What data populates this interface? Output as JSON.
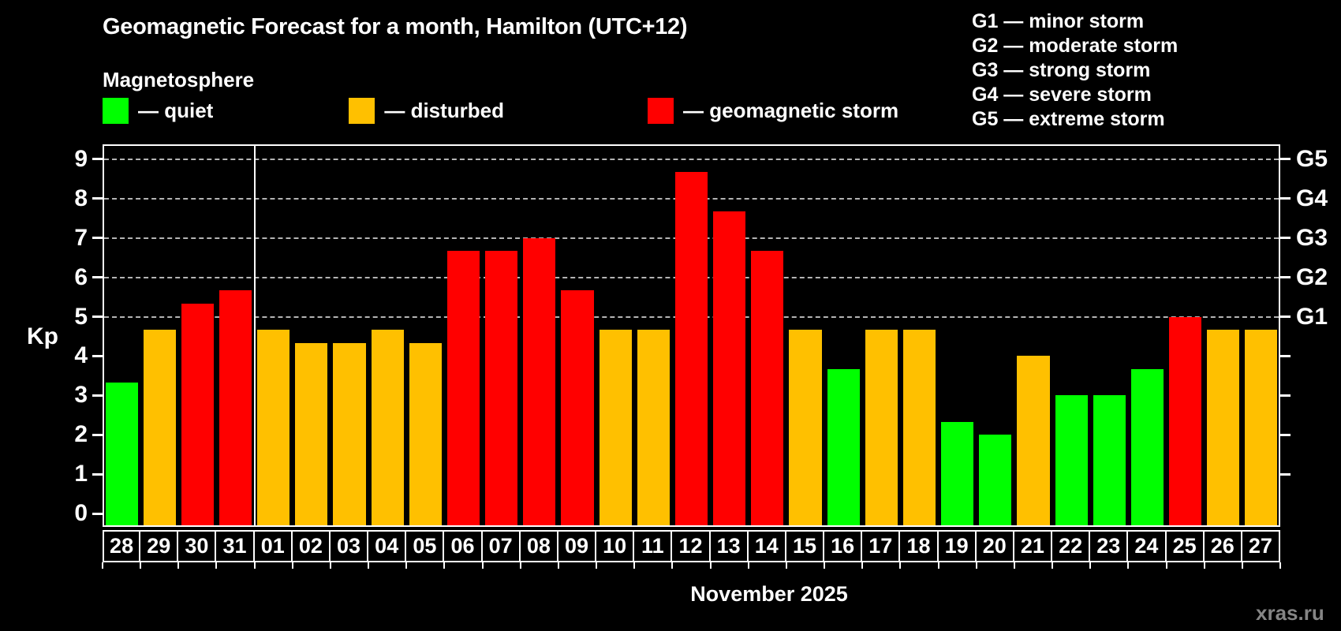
{
  "title": "Geomagnetic Forecast for a month, Hamilton (UTC+12)",
  "subtitle": "Magnetosphere",
  "legend": {
    "items": [
      {
        "label": "— quiet",
        "status": "quiet"
      },
      {
        "label": "— disturbed",
        "status": "disturbed"
      },
      {
        "label": "— geomagnetic storm",
        "status": "storm"
      }
    ]
  },
  "g_legend": {
    "lines": [
      "G1 — minor storm",
      "G2 — moderate storm",
      "G3 — strong storm",
      "G4 — severe storm",
      "G5 — extreme storm"
    ]
  },
  "axis": {
    "kp_label": "Kp",
    "left_tick_labels": [
      "0",
      "1",
      "2",
      "3",
      "4",
      "5",
      "6",
      "7",
      "8",
      "9"
    ],
    "right_labels": [
      {
        "kp": 5,
        "label": "G1"
      },
      {
        "kp": 6,
        "label": "G2"
      },
      {
        "kp": 7,
        "label": "G3"
      },
      {
        "kp": 8,
        "label": "G4"
      },
      {
        "kp": 9,
        "label": "G5"
      }
    ]
  },
  "footer": {
    "month_label": "November 2025",
    "watermark": "xras.ru"
  },
  "colors": {
    "quiet": "#00ff00",
    "disturbed": "#ffc000",
    "storm": "#ff0000",
    "background": "#000000",
    "grid": "#b4b4b4",
    "axis": "#ffffff",
    "watermark": "#858585"
  },
  "chart_data": {
    "type": "bar",
    "title": "Geomagnetic Forecast for a month, Hamilton (UTC+12)",
    "xlabel": "November 2025",
    "ylabel": "Kp",
    "ylim": [
      0,
      9
    ],
    "grid_kp_levels": [
      5,
      6,
      7,
      8,
      9
    ],
    "month_separator_index": 4,
    "categories": [
      "28",
      "29",
      "30",
      "31",
      "01",
      "02",
      "03",
      "04",
      "05",
      "06",
      "07",
      "08",
      "09",
      "10",
      "11",
      "12",
      "13",
      "14",
      "15",
      "16",
      "17",
      "18",
      "19",
      "20",
      "21",
      "22",
      "23",
      "24",
      "25",
      "26",
      "27"
    ],
    "values": [
      3.33,
      4.67,
      5.33,
      5.67,
      4.67,
      4.33,
      4.33,
      4.67,
      4.33,
      6.67,
      6.67,
      7.0,
      5.67,
      4.67,
      4.67,
      8.67,
      7.67,
      6.67,
      4.67,
      3.67,
      4.67,
      4.67,
      2.33,
      2.0,
      4.0,
      3.0,
      3.0,
      3.67,
      5.0,
      4.67,
      4.67
    ],
    "statuses": [
      "quiet",
      "disturbed",
      "storm",
      "storm",
      "disturbed",
      "disturbed",
      "disturbed",
      "disturbed",
      "disturbed",
      "storm",
      "storm",
      "storm",
      "storm",
      "disturbed",
      "disturbed",
      "storm",
      "storm",
      "storm",
      "disturbed",
      "quiet",
      "disturbed",
      "disturbed",
      "quiet",
      "quiet",
      "disturbed",
      "quiet",
      "quiet",
      "quiet",
      "storm",
      "disturbed",
      "disturbed"
    ],
    "legend_position": "top-left",
    "grid": "dashed horizontal at G-storm levels only"
  }
}
